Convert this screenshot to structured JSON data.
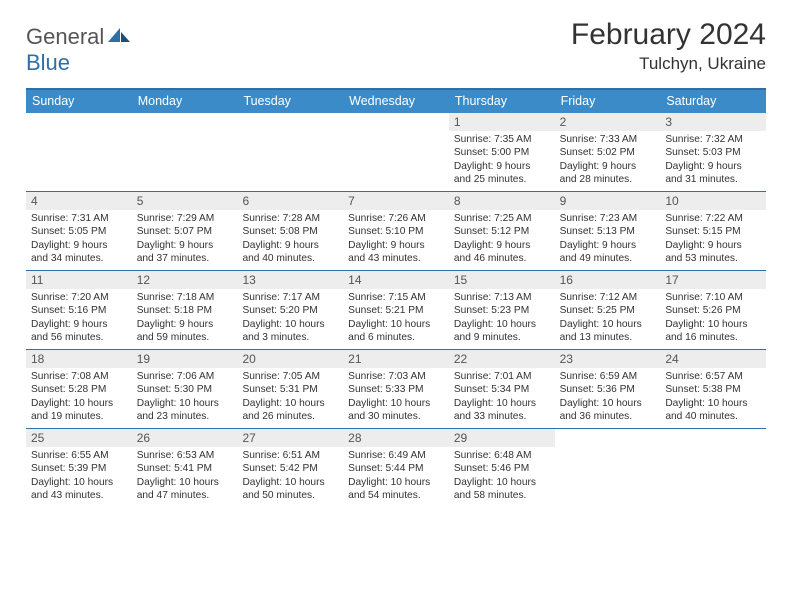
{
  "brand": {
    "part1": "General",
    "part2": "Blue"
  },
  "title": "February 2024",
  "location": "Tulchyn, Ukraine",
  "colors": {
    "header_bg": "#3b8bc9",
    "border": "#2f6fa8",
    "daynum_bg": "#ededed",
    "text": "#333333"
  },
  "dow": [
    "Sunday",
    "Monday",
    "Tuesday",
    "Wednesday",
    "Thursday",
    "Friday",
    "Saturday"
  ],
  "weeks": [
    [
      {
        "n": "",
        "sr": "",
        "ss": "",
        "dl": ""
      },
      {
        "n": "",
        "sr": "",
        "ss": "",
        "dl": ""
      },
      {
        "n": "",
        "sr": "",
        "ss": "",
        "dl": ""
      },
      {
        "n": "",
        "sr": "",
        "ss": "",
        "dl": ""
      },
      {
        "n": "1",
        "sr": "Sunrise: 7:35 AM",
        "ss": "Sunset: 5:00 PM",
        "dl": "Daylight: 9 hours and 25 minutes."
      },
      {
        "n": "2",
        "sr": "Sunrise: 7:33 AM",
        "ss": "Sunset: 5:02 PM",
        "dl": "Daylight: 9 hours and 28 minutes."
      },
      {
        "n": "3",
        "sr": "Sunrise: 7:32 AM",
        "ss": "Sunset: 5:03 PM",
        "dl": "Daylight: 9 hours and 31 minutes."
      }
    ],
    [
      {
        "n": "4",
        "sr": "Sunrise: 7:31 AM",
        "ss": "Sunset: 5:05 PM",
        "dl": "Daylight: 9 hours and 34 minutes."
      },
      {
        "n": "5",
        "sr": "Sunrise: 7:29 AM",
        "ss": "Sunset: 5:07 PM",
        "dl": "Daylight: 9 hours and 37 minutes."
      },
      {
        "n": "6",
        "sr": "Sunrise: 7:28 AM",
        "ss": "Sunset: 5:08 PM",
        "dl": "Daylight: 9 hours and 40 minutes."
      },
      {
        "n": "7",
        "sr": "Sunrise: 7:26 AM",
        "ss": "Sunset: 5:10 PM",
        "dl": "Daylight: 9 hours and 43 minutes."
      },
      {
        "n": "8",
        "sr": "Sunrise: 7:25 AM",
        "ss": "Sunset: 5:12 PM",
        "dl": "Daylight: 9 hours and 46 minutes."
      },
      {
        "n": "9",
        "sr": "Sunrise: 7:23 AM",
        "ss": "Sunset: 5:13 PM",
        "dl": "Daylight: 9 hours and 49 minutes."
      },
      {
        "n": "10",
        "sr": "Sunrise: 7:22 AM",
        "ss": "Sunset: 5:15 PM",
        "dl": "Daylight: 9 hours and 53 minutes."
      }
    ],
    [
      {
        "n": "11",
        "sr": "Sunrise: 7:20 AM",
        "ss": "Sunset: 5:16 PM",
        "dl": "Daylight: 9 hours and 56 minutes."
      },
      {
        "n": "12",
        "sr": "Sunrise: 7:18 AM",
        "ss": "Sunset: 5:18 PM",
        "dl": "Daylight: 9 hours and 59 minutes."
      },
      {
        "n": "13",
        "sr": "Sunrise: 7:17 AM",
        "ss": "Sunset: 5:20 PM",
        "dl": "Daylight: 10 hours and 3 minutes."
      },
      {
        "n": "14",
        "sr": "Sunrise: 7:15 AM",
        "ss": "Sunset: 5:21 PM",
        "dl": "Daylight: 10 hours and 6 minutes."
      },
      {
        "n": "15",
        "sr": "Sunrise: 7:13 AM",
        "ss": "Sunset: 5:23 PM",
        "dl": "Daylight: 10 hours and 9 minutes."
      },
      {
        "n": "16",
        "sr": "Sunrise: 7:12 AM",
        "ss": "Sunset: 5:25 PM",
        "dl": "Daylight: 10 hours and 13 minutes."
      },
      {
        "n": "17",
        "sr": "Sunrise: 7:10 AM",
        "ss": "Sunset: 5:26 PM",
        "dl": "Daylight: 10 hours and 16 minutes."
      }
    ],
    [
      {
        "n": "18",
        "sr": "Sunrise: 7:08 AM",
        "ss": "Sunset: 5:28 PM",
        "dl": "Daylight: 10 hours and 19 minutes."
      },
      {
        "n": "19",
        "sr": "Sunrise: 7:06 AM",
        "ss": "Sunset: 5:30 PM",
        "dl": "Daylight: 10 hours and 23 minutes."
      },
      {
        "n": "20",
        "sr": "Sunrise: 7:05 AM",
        "ss": "Sunset: 5:31 PM",
        "dl": "Daylight: 10 hours and 26 minutes."
      },
      {
        "n": "21",
        "sr": "Sunrise: 7:03 AM",
        "ss": "Sunset: 5:33 PM",
        "dl": "Daylight: 10 hours and 30 minutes."
      },
      {
        "n": "22",
        "sr": "Sunrise: 7:01 AM",
        "ss": "Sunset: 5:34 PM",
        "dl": "Daylight: 10 hours and 33 minutes."
      },
      {
        "n": "23",
        "sr": "Sunrise: 6:59 AM",
        "ss": "Sunset: 5:36 PM",
        "dl": "Daylight: 10 hours and 36 minutes."
      },
      {
        "n": "24",
        "sr": "Sunrise: 6:57 AM",
        "ss": "Sunset: 5:38 PM",
        "dl": "Daylight: 10 hours and 40 minutes."
      }
    ],
    [
      {
        "n": "25",
        "sr": "Sunrise: 6:55 AM",
        "ss": "Sunset: 5:39 PM",
        "dl": "Daylight: 10 hours and 43 minutes."
      },
      {
        "n": "26",
        "sr": "Sunrise: 6:53 AM",
        "ss": "Sunset: 5:41 PM",
        "dl": "Daylight: 10 hours and 47 minutes."
      },
      {
        "n": "27",
        "sr": "Sunrise: 6:51 AM",
        "ss": "Sunset: 5:42 PM",
        "dl": "Daylight: 10 hours and 50 minutes."
      },
      {
        "n": "28",
        "sr": "Sunrise: 6:49 AM",
        "ss": "Sunset: 5:44 PM",
        "dl": "Daylight: 10 hours and 54 minutes."
      },
      {
        "n": "29",
        "sr": "Sunrise: 6:48 AM",
        "ss": "Sunset: 5:46 PM",
        "dl": "Daylight: 10 hours and 58 minutes."
      },
      {
        "n": "",
        "sr": "",
        "ss": "",
        "dl": ""
      },
      {
        "n": "",
        "sr": "",
        "ss": "",
        "dl": ""
      }
    ]
  ]
}
